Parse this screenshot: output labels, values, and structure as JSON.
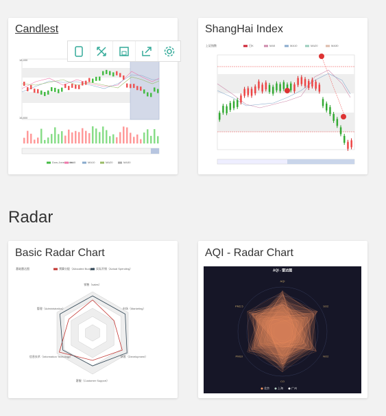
{
  "section_title": "Radar",
  "cards": [
    {
      "title": "Candlest",
      "legend": [
        "Dow-Jones index",
        "MA5",
        "MA10",
        "MA20",
        "MA30"
      ]
    },
    {
      "title": "ShangHai Index",
      "chart_title": "上证指数",
      "legend": [
        "日K",
        "MA5",
        "MA10",
        "MA20",
        "MA30"
      ]
    },
    {
      "title": "Basic Radar Chart",
      "chart_title": "基础雷达图",
      "legend": [
        "预算分配（Allocated Budget）",
        "实际开销（Actual Spending）"
      ],
      "indicators": [
        "销售（sales）",
        "管理（Administration）",
        "信息技术（Information Techology）",
        "客服（Customer Support）",
        "研发（Development）",
        "市场（Marketing）"
      ]
    },
    {
      "title": "AQI - Radar Chart",
      "chart_title": "AQI - 雷达图",
      "indicators": [
        "AQI",
        "PM2.5",
        "PM10",
        "CO",
        "NO2",
        "SO2"
      ],
      "legend": [
        "北京",
        "上海",
        "广州"
      ]
    }
  ]
}
